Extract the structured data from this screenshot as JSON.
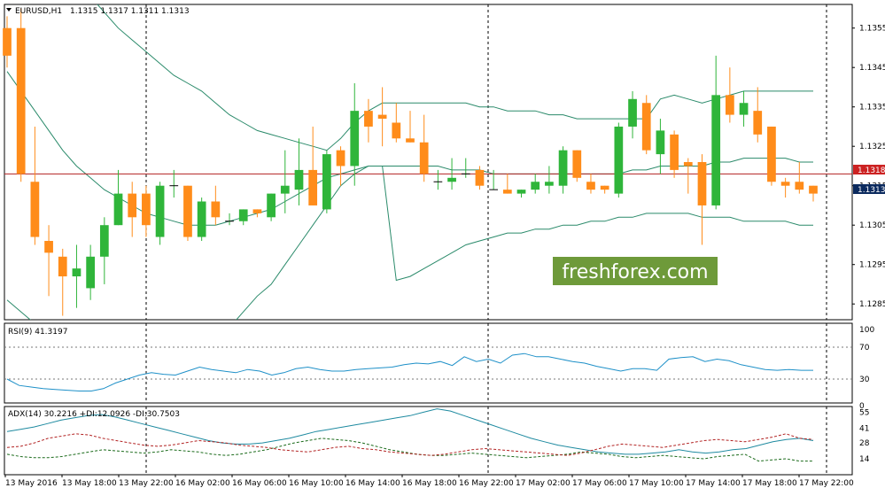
{
  "header": {
    "symbol_title": "EURUSD,H1",
    "ohlc": "1.1315 1.1317 1.1311 1.1313"
  },
  "watermark": {
    "text": "freshforex.com",
    "bg_color": "#6e9a3a",
    "text_color": "#ffffff"
  },
  "colors": {
    "bull": "#2fb53a",
    "bear": "#ff8c1a",
    "band": "#2a8a6a",
    "rsi": "#1e90c8",
    "adx_main": "#1e8aa0",
    "di_plus": "#1a6a1a",
    "di_minus": "#b22222",
    "hline": "#b22222",
    "price_tag_red": "#cc2222",
    "price_tag_dark": "#0b2a5e"
  },
  "price_axis": {
    "labels": [
      "1.1355",
      "1.1345",
      "1.1335",
      "1.1325",
      "1.1315",
      "1.1305",
      "1.1295",
      "1.1285"
    ],
    "current_line_tag": "1.1318",
    "last_price_tag": "1.1313"
  },
  "rsi_pane": {
    "title": "RSI(9) 41.3197",
    "levels": [
      "100",
      "70",
      "30",
      "0"
    ]
  },
  "adx_pane": {
    "title": "ADX(14) 30.2216 +DI:12.0926 -DI:30.7503",
    "levels": [
      "55",
      "41",
      "28",
      "14"
    ]
  },
  "time_axis": {
    "labels": [
      "13 May 2016",
      "13 May 18:00",
      "13 May 22:00",
      "16 May 02:00",
      "16 May 06:00",
      "16 May 10:00",
      "16 May 14:00",
      "16 May 18:00",
      "16 May 22:00",
      "17 May 02:00",
      "17 May 06:00",
      "17 May 10:00",
      "17 May 14:00",
      "17 May 18:00",
      "17 May 22:00"
    ]
  },
  "chart_data": [
    {
      "type": "candlestick",
      "title": "EURUSD,H1",
      "ylim": [
        1.1281,
        1.1361
      ],
      "candles": [
        {
          "o": 1.1355,
          "h": 1.1358,
          "l": 1.1345,
          "c": 1.1348
        },
        {
          "o": 1.1355,
          "h": 1.136,
          "l": 1.1316,
          "c": 1.1318
        },
        {
          "o": 1.1316,
          "h": 1.133,
          "l": 1.13,
          "c": 1.1302
        },
        {
          "o": 1.1301,
          "h": 1.1305,
          "l": 1.1287,
          "c": 1.1298
        },
        {
          "o": 1.1297,
          "h": 1.1299,
          "l": 1.1282,
          "c": 1.1292
        },
        {
          "o": 1.1292,
          "h": 1.13,
          "l": 1.1284,
          "c": 1.1294
        },
        {
          "o": 1.1289,
          "h": 1.13,
          "l": 1.1286,
          "c": 1.1297
        },
        {
          "o": 1.1297,
          "h": 1.1307,
          "l": 1.129,
          "c": 1.1305
        },
        {
          "o": 1.1305,
          "h": 1.1319,
          "l": 1.1305,
          "c": 1.1313
        },
        {
          "o": 1.1313,
          "h": 1.1316,
          "l": 1.1302,
          "c": 1.1307
        },
        {
          "o": 1.1313,
          "h": 1.1315,
          "l": 1.1302,
          "c": 1.1305
        },
        {
          "o": 1.1302,
          "h": 1.1316,
          "l": 1.13,
          "c": 1.1315
        },
        {
          "o": 1.1315,
          "h": 1.1319,
          "l": 1.1312,
          "c": 1.1315
        },
        {
          "o": 1.1315,
          "h": 1.1315,
          "l": 1.1301,
          "c": 1.1302
        },
        {
          "o": 1.1302,
          "h": 1.1312,
          "l": 1.1301,
          "c": 1.1311
        },
        {
          "o": 1.1311,
          "h": 1.1315,
          "l": 1.1305,
          "c": 1.1307
        },
        {
          "o": 1.1306,
          "h": 1.1308,
          "l": 1.1305,
          "c": 1.1306
        },
        {
          "o": 1.1306,
          "h": 1.1309,
          "l": 1.1305,
          "c": 1.1309
        },
        {
          "o": 1.1309,
          "h": 1.1309,
          "l": 1.1307,
          "c": 1.1308
        },
        {
          "o": 1.1307,
          "h": 1.1313,
          "l": 1.1306,
          "c": 1.1313
        },
        {
          "o": 1.1313,
          "h": 1.1324,
          "l": 1.1308,
          "c": 1.1315
        },
        {
          "o": 1.1314,
          "h": 1.1327,
          "l": 1.131,
          "c": 1.1319
        },
        {
          "o": 1.1319,
          "h": 1.133,
          "l": 1.131,
          "c": 1.131
        },
        {
          "o": 1.1309,
          "h": 1.1324,
          "l": 1.1308,
          "c": 1.1323
        },
        {
          "o": 1.1324,
          "h": 1.1325,
          "l": 1.1315,
          "c": 1.132
        },
        {
          "o": 1.132,
          "h": 1.1341,
          "l": 1.1315,
          "c": 1.1334
        },
        {
          "o": 1.1334,
          "h": 1.1337,
          "l": 1.1326,
          "c": 1.133
        },
        {
          "o": 1.1333,
          "h": 1.134,
          "l": 1.1325,
          "c": 1.1332
        },
        {
          "o": 1.1331,
          "h": 1.1336,
          "l": 1.1326,
          "c": 1.1327
        },
        {
          "o": 1.1327,
          "h": 1.1334,
          "l": 1.1326,
          "c": 1.1326
        },
        {
          "o": 1.1326,
          "h": 1.1333,
          "l": 1.1316,
          "c": 1.1318
        },
        {
          "o": 1.1316,
          "h": 1.1319,
          "l": 1.1314,
          "c": 1.1316
        },
        {
          "o": 1.1316,
          "h": 1.1322,
          "l": 1.1314,
          "c": 1.1317
        },
        {
          "o": 1.1318,
          "h": 1.1322,
          "l": 1.1317,
          "c": 1.1318
        },
        {
          "o": 1.1319,
          "h": 1.132,
          "l": 1.1314,
          "c": 1.1315
        },
        {
          "o": 1.1314,
          "h": 1.1319,
          "l": 1.1314,
          "c": 1.1314
        },
        {
          "o": 1.1314,
          "h": 1.1318,
          "l": 1.1313,
          "c": 1.1313
        },
        {
          "o": 1.1313,
          "h": 1.1314,
          "l": 1.1312,
          "c": 1.1314
        },
        {
          "o": 1.1314,
          "h": 1.1318,
          "l": 1.1313,
          "c": 1.1316
        },
        {
          "o": 1.1315,
          "h": 1.132,
          "l": 1.1313,
          "c": 1.1316
        },
        {
          "o": 1.1315,
          "h": 1.1325,
          "l": 1.1313,
          "c": 1.1324
        },
        {
          "o": 1.1324,
          "h": 1.1324,
          "l": 1.1316,
          "c": 1.1317
        },
        {
          "o": 1.1316,
          "h": 1.1318,
          "l": 1.1313,
          "c": 1.1314
        },
        {
          "o": 1.1315,
          "h": 1.1315,
          "l": 1.1313,
          "c": 1.1314
        },
        {
          "o": 1.1313,
          "h": 1.1331,
          "l": 1.1312,
          "c": 1.133
        },
        {
          "o": 1.133,
          "h": 1.1339,
          "l": 1.1327,
          "c": 1.1337
        },
        {
          "o": 1.1336,
          "h": 1.1338,
          "l": 1.1323,
          "c": 1.1324
        },
        {
          "o": 1.1323,
          "h": 1.1332,
          "l": 1.1318,
          "c": 1.1329
        },
        {
          "o": 1.1328,
          "h": 1.1329,
          "l": 1.1317,
          "c": 1.1319
        },
        {
          "o": 1.1321,
          "h": 1.1322,
          "l": 1.1313,
          "c": 1.132
        },
        {
          "o": 1.1321,
          "h": 1.1323,
          "l": 1.13,
          "c": 1.131
        },
        {
          "o": 1.131,
          "h": 1.1348,
          "l": 1.1309,
          "c": 1.1338
        },
        {
          "o": 1.1338,
          "h": 1.1345,
          "l": 1.1331,
          "c": 1.1333
        },
        {
          "o": 1.1333,
          "h": 1.1339,
          "l": 1.133,
          "c": 1.1336
        },
        {
          "o": 1.1334,
          "h": 1.134,
          "l": 1.1326,
          "c": 1.1328
        },
        {
          "o": 1.133,
          "h": 1.133,
          "l": 1.1315,
          "c": 1.1316
        },
        {
          "o": 1.1316,
          "h": 1.1317,
          "l": 1.1312,
          "c": 1.1315
        },
        {
          "o": 1.1316,
          "h": 1.1321,
          "l": 1.1313,
          "c": 1.1314
        },
        {
          "o": 1.1315,
          "h": 1.1315,
          "l": 1.1311,
          "c": 1.1313
        }
      ],
      "bands": {
        "upper": [
          1.1402,
          1.1395,
          1.1388,
          1.138,
          1.1374,
          1.1368,
          1.1363,
          1.1359,
          1.1355,
          1.1352,
          1.1349,
          1.1346,
          1.1343,
          1.1341,
          1.1339,
          1.1336,
          1.1333,
          1.1331,
          1.1329,
          1.1328,
          1.1327,
          1.1326,
          1.1325,
          1.1324,
          1.1327,
          1.1331,
          1.1334,
          1.1336,
          1.1336,
          1.1336,
          1.1336,
          1.1336,
          1.1336,
          1.1336,
          1.1335,
          1.1335,
          1.1334,
          1.1334,
          1.1334,
          1.1333,
          1.1333,
          1.1332,
          1.1332,
          1.1332,
          1.1332,
          1.1332,
          1.1332,
          1.1337,
          1.1338,
          1.1337,
          1.1336,
          1.1337,
          1.1338,
          1.1339,
          1.1339,
          1.1339,
          1.1339,
          1.1339,
          1.1339
        ],
        "middle": [
          1.1344,
          1.1339,
          1.1334,
          1.1329,
          1.1324,
          1.132,
          1.1317,
          1.1314,
          1.1312,
          1.131,
          1.1308,
          1.1307,
          1.1306,
          1.1305,
          1.1305,
          1.1305,
          1.1306,
          1.1307,
          1.1308,
          1.1309,
          1.1311,
          1.1313,
          1.1315,
          1.1317,
          1.1318,
          1.1319,
          1.132,
          1.132,
          1.132,
          1.132,
          1.132,
          1.132,
          1.1319,
          1.1319,
          1.1319,
          1.1318,
          1.1318,
          1.1318,
          1.1318,
          1.1318,
          1.1318,
          1.1318,
          1.1318,
          1.1318,
          1.1318,
          1.1319,
          1.1319,
          1.132,
          1.132,
          1.132,
          1.132,
          1.1321,
          1.1321,
          1.1322,
          1.1322,
          1.1322,
          1.1322,
          1.1321,
          1.1321
        ],
        "lower": [
          1.1286,
          1.1283,
          1.128,
          1.1278,
          1.1274,
          1.1272,
          1.1271,
          1.1269,
          1.1269,
          1.1268,
          1.1267,
          1.1268,
          1.1269,
          1.1269,
          1.1271,
          1.1274,
          1.1279,
          1.1283,
          1.1287,
          1.129,
          1.1295,
          1.13,
          1.1305,
          1.131,
          1.1315,
          1.1318,
          1.132,
          1.132,
          1.1291,
          1.1292,
          1.1294,
          1.1296,
          1.1298,
          1.13,
          1.1301,
          1.1302,
          1.1303,
          1.1303,
          1.1304,
          1.1304,
          1.1305,
          1.1305,
          1.1306,
          1.1306,
          1.1307,
          1.1307,
          1.1308,
          1.1308,
          1.1308,
          1.1308,
          1.1307,
          1.1307,
          1.1307,
          1.1306,
          1.1306,
          1.1306,
          1.1306,
          1.1305,
          1.1305
        ]
      },
      "horizontal_line": 1.1318
    },
    {
      "type": "line",
      "title": "RSI(9) 41.3197",
      "ylim": [
        0,
        100
      ],
      "levels": [
        70,
        30
      ],
      "series": [
        {
          "values": [
            30,
            22,
            20,
            18,
            17,
            16,
            15,
            15,
            18,
            25,
            30,
            35,
            38,
            36,
            35,
            40,
            45,
            42,
            40,
            38,
            42,
            40,
            35,
            38,
            43,
            45,
            42,
            40,
            40,
            42,
            43,
            44,
            45,
            48,
            50,
            49,
            52,
            47,
            58,
            52,
            55,
            50,
            60,
            62,
            58,
            58,
            55,
            52,
            50,
            46,
            43,
            40,
            43,
            43,
            41,
            55,
            57,
            58,
            52,
            55,
            53,
            48,
            45,
            42,
            41,
            42,
            41,
            41
          ]
        }
      ]
    },
    {
      "type": "line",
      "title": "ADX(14) 30.2216 +DI:12.0926 -DI:30.7503",
      "ylim": [
        0,
        60
      ],
      "levels": [
        55,
        41,
        28,
        14
      ],
      "series": [
        {
          "values": [
            38,
            40,
            42,
            45,
            48,
            50,
            52,
            53,
            51,
            48,
            45,
            42,
            39,
            36,
            33,
            30,
            28,
            27,
            27,
            28,
            30,
            32,
            35,
            38,
            40,
            42,
            44,
            46,
            48,
            50,
            52,
            55,
            58,
            56,
            52,
            48,
            44,
            40,
            36,
            32,
            29,
            26,
            24,
            22,
            20,
            19,
            18,
            18,
            19,
            20,
            22,
            20,
            19,
            20,
            22,
            23,
            26,
            29,
            31,
            32,
            30
          ]
        },
        {
          "values": [
            18,
            16,
            15,
            15,
            16,
            18,
            20,
            22,
            21,
            20,
            19,
            20,
            22,
            21,
            20,
            18,
            17,
            18,
            20,
            22,
            25,
            28,
            30,
            32,
            31,
            30,
            28,
            25,
            22,
            20,
            18,
            17,
            17,
            18,
            19,
            18,
            17,
            16,
            15,
            16,
            17,
            18,
            20,
            19,
            18,
            16,
            15,
            16,
            17,
            16,
            15,
            14,
            16,
            17,
            18,
            12,
            13,
            14,
            12,
            12
          ]
        },
        {
          "values": [
            24,
            25,
            28,
            32,
            34,
            36,
            35,
            32,
            30,
            28,
            26,
            25,
            26,
            28,
            30,
            29,
            28,
            26,
            25,
            24,
            22,
            21,
            20,
            22,
            24,
            25,
            23,
            22,
            20,
            19,
            18,
            17,
            18,
            20,
            22,
            23,
            22,
            21,
            20,
            19,
            18,
            17,
            19,
            22,
            25,
            27,
            26,
            25,
            24,
            26,
            28,
            30,
            31,
            30,
            29,
            31,
            33,
            36,
            32,
            31
          ]
        }
      ]
    }
  ]
}
